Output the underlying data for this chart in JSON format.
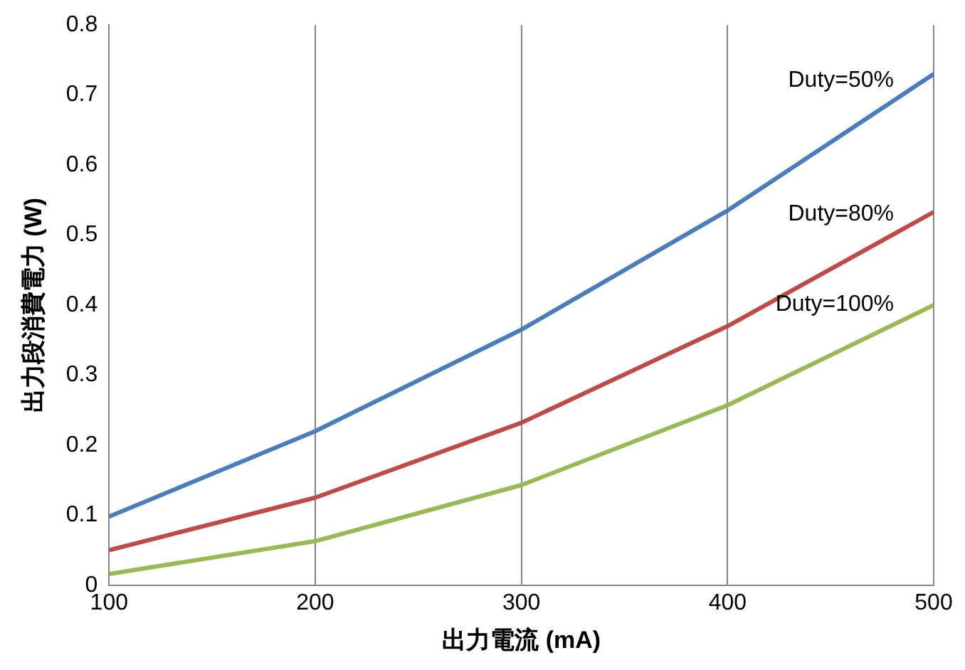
{
  "chart_data": {
    "type": "line",
    "xlabel": "出力電流 (mA)",
    "ylabel": "出力段消費電力 (W)",
    "x": [
      100,
      200,
      300,
      400,
      500
    ],
    "series": [
      {
        "name": "Duty=50%",
        "color": "#4a7ebb",
        "values": [
          0.098,
          0.22,
          0.365,
          0.535,
          0.73
        ]
      },
      {
        "name": "Duty=80%",
        "color": "#be4b48",
        "values": [
          0.05,
          0.125,
          0.232,
          0.37,
          0.533
        ]
      },
      {
        "name": "Duty=100%",
        "color": "#98b954",
        "values": [
          0.016,
          0.063,
          0.143,
          0.257,
          0.4
        ]
      }
    ],
    "xlim": [
      100,
      500
    ],
    "xticks": [
      100,
      200,
      300,
      400,
      500
    ],
    "ylim": [
      0,
      0.8
    ],
    "yticks": [
      0,
      0.1,
      0.2,
      0.3,
      0.4,
      0.5,
      0.6,
      0.7,
      0.8
    ],
    "grid": "x",
    "legend": false,
    "marker": "none",
    "line_style": "solid"
  }
}
